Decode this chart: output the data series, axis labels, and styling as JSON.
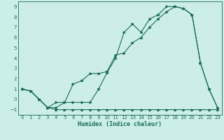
{
  "xlabel": "Humidex (Indice chaleur)",
  "bg_color": "#cceee8",
  "line_color": "#1a6b5a",
  "grid_color": "#d4e8e4",
  "xlim": [
    -0.5,
    23.5
  ],
  "ylim": [
    -1.5,
    9.5
  ],
  "xticks": [
    0,
    1,
    2,
    3,
    4,
    5,
    6,
    7,
    8,
    9,
    10,
    11,
    12,
    13,
    14,
    15,
    16,
    17,
    18,
    19,
    20,
    21,
    22,
    23
  ],
  "yticks": [
    -1,
    0,
    1,
    2,
    3,
    4,
    5,
    6,
    7,
    8,
    9
  ],
  "series1_x": [
    0,
    1,
    2,
    3,
    4,
    5,
    6,
    7,
    8,
    9,
    10,
    11,
    12,
    13,
    14,
    15,
    16,
    17,
    18,
    19,
    20,
    21,
    22,
    23
  ],
  "series1_y": [
    1.0,
    0.8,
    0.0,
    -0.8,
    -0.8,
    -0.3,
    -0.3,
    -0.3,
    -0.3,
    1.0,
    2.6,
    4.0,
    6.5,
    7.3,
    6.5,
    7.8,
    8.2,
    9.0,
    9.0,
    8.8,
    8.2,
    3.5,
    1.0,
    -0.8
  ],
  "series2_x": [
    0,
    1,
    2,
    3,
    4,
    5,
    6,
    7,
    8,
    9,
    10,
    11,
    12,
    13,
    14,
    15,
    16,
    17,
    18,
    19,
    20,
    21,
    22,
    23
  ],
  "series2_y": [
    1.0,
    0.8,
    0.0,
    -0.8,
    -1.0,
    -1.0,
    -1.0,
    -1.0,
    -1.0,
    -1.0,
    -1.0,
    -1.0,
    -1.0,
    -1.0,
    -1.0,
    -1.0,
    -1.0,
    -1.0,
    -1.0,
    -1.0,
    -1.0,
    -1.0,
    -1.0,
    -1.0
  ],
  "series3_x": [
    0,
    1,
    2,
    3,
    4,
    5,
    6,
    7,
    8,
    9,
    10,
    11,
    12,
    13,
    14,
    15,
    16,
    17,
    18,
    19,
    20,
    21,
    22,
    23
  ],
  "series3_y": [
    1.0,
    0.8,
    0.0,
    -0.8,
    -0.3,
    -0.3,
    1.5,
    1.8,
    2.5,
    2.5,
    2.7,
    4.3,
    4.5,
    5.5,
    6.0,
    7.0,
    7.8,
    8.5,
    9.0,
    8.8,
    8.2,
    3.5,
    1.0,
    -0.8
  ]
}
